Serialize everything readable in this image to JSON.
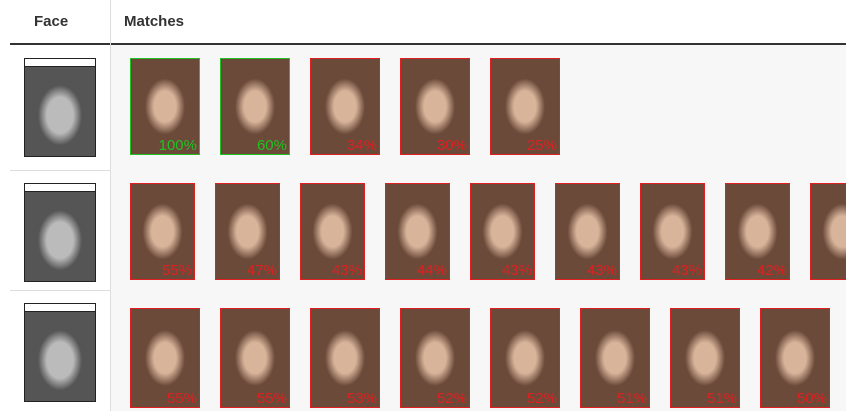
{
  "header": {
    "face": "Face",
    "matches": "Matches"
  },
  "rows": [
    {
      "matches": [
        {
          "label": "100%",
          "color": "#22c022"
        },
        {
          "label": "60%",
          "color": "#22c022"
        },
        {
          "label": "34%",
          "color": "#e02020"
        },
        {
          "label": "30%",
          "color": "#e02020"
        },
        {
          "label": "25%",
          "color": "#e02020"
        }
      ]
    },
    {
      "matches": [
        {
          "label": "55%",
          "color": "#e02020"
        },
        {
          "label": "47%",
          "color": "#e02020"
        },
        {
          "label": "43%",
          "color": "#e02020"
        },
        {
          "label": "44%",
          "color": "#e02020"
        },
        {
          "label": "43%",
          "color": "#e02020"
        },
        {
          "label": "43%",
          "color": "#e02020"
        },
        {
          "label": "43%",
          "color": "#e02020"
        },
        {
          "label": "42%",
          "color": "#e02020"
        },
        {
          "color": "#e02020"
        }
      ]
    },
    {
      "matches": [
        {
          "label": "55%",
          "color": "#e02020"
        },
        {
          "label": "55%",
          "color": "#e02020"
        },
        {
          "label": "53%",
          "color": "#e02020"
        },
        {
          "label": "52%",
          "color": "#e02020"
        },
        {
          "label": "52%",
          "color": "#e02020"
        },
        {
          "label": "51%",
          "color": "#e02020"
        },
        {
          "label": "51%",
          "color": "#e02020"
        },
        {
          "label": "50%",
          "color": "#e02020"
        }
      ]
    }
  ]
}
